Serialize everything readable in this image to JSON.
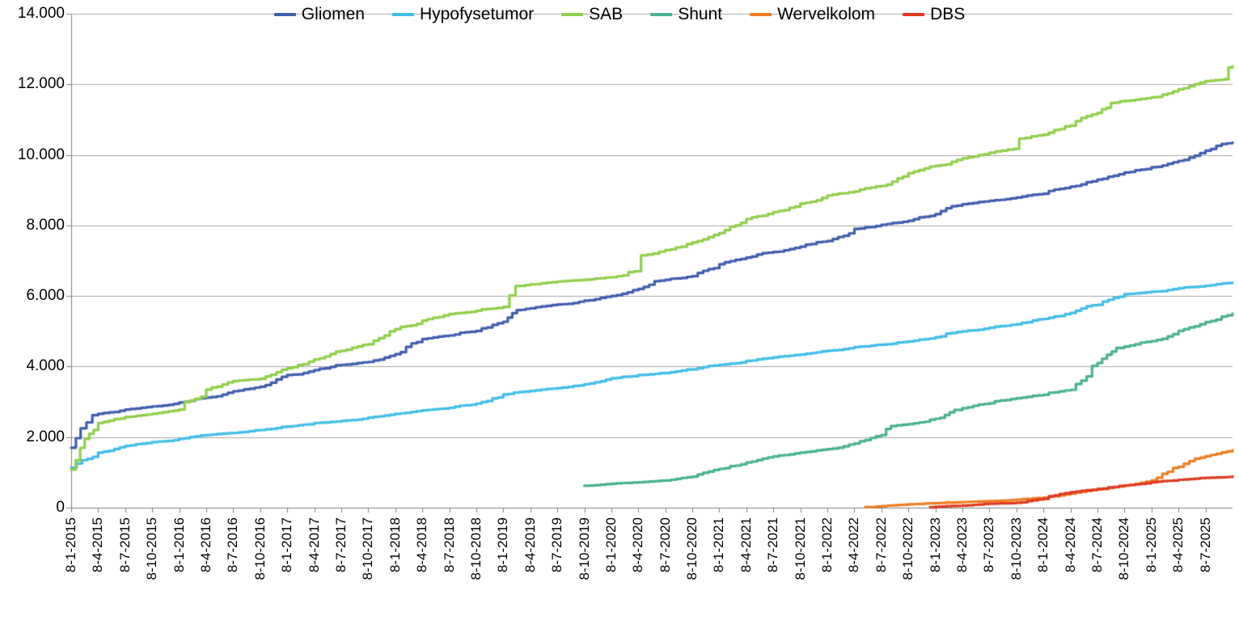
{
  "chart_data": {
    "type": "line",
    "title": "",
    "xlabel": "",
    "ylabel": "",
    "ylim": [
      0,
      14000
    ],
    "grid": "horizontal",
    "legend_position": "bottom",
    "y_ticks": [
      0,
      2000,
      4000,
      6000,
      8000,
      10000,
      12000,
      14000
    ],
    "y_tick_labels": [
      "0",
      "2.000",
      "4.000",
      "6.000",
      "8.000",
      "10.000",
      "12.000",
      "14.000"
    ],
    "x_tick_labels": [
      "8-1-2015",
      "8-4-2015",
      "8-7-2015",
      "8-10-2015",
      "8-1-2016",
      "8-4-2016",
      "8-7-2016",
      "8-10-2016",
      "8-1-2017",
      "8-4-2017",
      "8-7-2017",
      "8-10-2017",
      "8-1-2018",
      "8-4-2018",
      "8-7-2018",
      "8-10-2018",
      "8-1-2019",
      "8-4-2019",
      "8-7-2019",
      "8-10-2019",
      "8-1-2020",
      "8-4-2020",
      "8-7-2020",
      "8-10-2020",
      "8-1-2021",
      "8-4-2021",
      "8-7-2021",
      "8-10-2021",
      "8-1-2022",
      "8-4-2022",
      "8-7-2022",
      "8-10-2022",
      "8-1-2023",
      "8-4-2023",
      "8-7-2023",
      "8-10-2023",
      "8-1-2024",
      "8-4-2024",
      "8-7-2024",
      "8-10-2024",
      "8-1-2025",
      "8-4-2025",
      "8-7-2025"
    ],
    "series": [
      {
        "name": "Gliomen",
        "color": "#3F5EAE",
        "points": [
          [
            0,
            1700
          ],
          [
            0.35,
            2250
          ],
          [
            1,
            2660
          ],
          [
            2,
            2780
          ],
          [
            3,
            2870
          ],
          [
            4,
            2980
          ],
          [
            5,
            3120
          ],
          [
            6,
            3300
          ],
          [
            7,
            3430
          ],
          [
            8,
            3760
          ],
          [
            9,
            3900
          ],
          [
            10,
            4050
          ],
          [
            11,
            4130
          ],
          [
            12,
            4350
          ],
          [
            13,
            4780
          ],
          [
            14,
            4880
          ],
          [
            15,
            5010
          ],
          [
            16,
            5270
          ],
          [
            16.5,
            5600
          ],
          [
            17,
            5650
          ],
          [
            18,
            5760
          ],
          [
            19,
            5870
          ],
          [
            20,
            6000
          ],
          [
            21,
            6200
          ],
          [
            21.6,
            6420
          ],
          [
            22,
            6460
          ],
          [
            23,
            6560
          ],
          [
            24,
            6900
          ],
          [
            25,
            7090
          ],
          [
            26,
            7250
          ],
          [
            27,
            7400
          ],
          [
            28,
            7560
          ],
          [
            29,
            7900
          ],
          [
            30,
            8020
          ],
          [
            31,
            8130
          ],
          [
            32,
            8320
          ],
          [
            33,
            8600
          ],
          [
            34,
            8700
          ],
          [
            35,
            8790
          ],
          [
            36,
            8900
          ],
          [
            37,
            9100
          ],
          [
            38,
            9300
          ],
          [
            39,
            9500
          ],
          [
            40,
            9650
          ],
          [
            41,
            9830
          ],
          [
            42,
            10120
          ],
          [
            43,
            10350
          ]
        ]
      },
      {
        "name": "Hypofysetumor",
        "color": "#41BEE8",
        "points": [
          [
            0,
            1130
          ],
          [
            1,
            1560
          ],
          [
            2,
            1750
          ],
          [
            3,
            1860
          ],
          [
            4,
            1950
          ],
          [
            5,
            2060
          ],
          [
            6,
            2120
          ],
          [
            7,
            2200
          ],
          [
            8,
            2300
          ],
          [
            9,
            2400
          ],
          [
            10,
            2460
          ],
          [
            11,
            2550
          ],
          [
            12,
            2660
          ],
          [
            13,
            2760
          ],
          [
            14,
            2830
          ],
          [
            15,
            2950
          ],
          [
            16,
            3210
          ],
          [
            17,
            3310
          ],
          [
            18,
            3390
          ],
          [
            19,
            3500
          ],
          [
            20,
            3670
          ],
          [
            21,
            3760
          ],
          [
            22,
            3820
          ],
          [
            23,
            3920
          ],
          [
            24,
            4050
          ],
          [
            25,
            4160
          ],
          [
            26,
            4260
          ],
          [
            27,
            4340
          ],
          [
            28,
            4450
          ],
          [
            29,
            4550
          ],
          [
            30,
            4620
          ],
          [
            31,
            4710
          ],
          [
            32,
            4830
          ],
          [
            33,
            5000
          ],
          [
            34,
            5100
          ],
          [
            35,
            5200
          ],
          [
            36,
            5350
          ],
          [
            37,
            5520
          ],
          [
            38,
            5750
          ],
          [
            39,
            6050
          ],
          [
            40,
            6120
          ],
          [
            41,
            6220
          ],
          [
            42,
            6290
          ],
          [
            43,
            6380
          ]
        ]
      },
      {
        "name": "SAB",
        "color": "#8FD04A",
        "points": [
          [
            0,
            1080
          ],
          [
            0.5,
            1950
          ],
          [
            1,
            2400
          ],
          [
            2,
            2570
          ],
          [
            3,
            2660
          ],
          [
            4,
            2780
          ],
          [
            5,
            3350
          ],
          [
            6,
            3590
          ],
          [
            7,
            3650
          ],
          [
            8,
            3950
          ],
          [
            9,
            4200
          ],
          [
            10,
            4450
          ],
          [
            11,
            4630
          ],
          [
            12,
            5060
          ],
          [
            13,
            5300
          ],
          [
            14,
            5490
          ],
          [
            15,
            5580
          ],
          [
            16,
            5690
          ],
          [
            16.45,
            6280
          ],
          [
            17,
            6330
          ],
          [
            18,
            6410
          ],
          [
            19,
            6460
          ],
          [
            20,
            6530
          ],
          [
            20.85,
            6700
          ],
          [
            21.1,
            7150
          ],
          [
            22,
            7300
          ],
          [
            23,
            7520
          ],
          [
            24,
            7780
          ],
          [
            25,
            8180
          ],
          [
            26,
            8380
          ],
          [
            27,
            8620
          ],
          [
            28,
            8850
          ],
          [
            29,
            8960
          ],
          [
            30,
            9120
          ],
          [
            31,
            9480
          ],
          [
            32,
            9690
          ],
          [
            33,
            9900
          ],
          [
            34,
            10060
          ],
          [
            34.9,
            10170
          ],
          [
            35.1,
            10460
          ],
          [
            36,
            10570
          ],
          [
            37,
            10830
          ],
          [
            38,
            11190
          ],
          [
            38.5,
            11470
          ],
          [
            39,
            11530
          ],
          [
            40,
            11630
          ],
          [
            41,
            11860
          ],
          [
            42,
            12090
          ],
          [
            42.7,
            12140
          ],
          [
            42.85,
            12480
          ],
          [
            43,
            12510
          ]
        ]
      },
      {
        "name": "Shunt",
        "color": "#48B38E",
        "points": [
          [
            19,
            620
          ],
          [
            20,
            680
          ],
          [
            21,
            720
          ],
          [
            22,
            770
          ],
          [
            23,
            880
          ],
          [
            24,
            1100
          ],
          [
            25,
            1280
          ],
          [
            26,
            1450
          ],
          [
            27,
            1560
          ],
          [
            28,
            1660
          ],
          [
            29,
            1820
          ],
          [
            30,
            2060
          ],
          [
            30.35,
            2310
          ],
          [
            31,
            2370
          ],
          [
            32,
            2520
          ],
          [
            32.7,
            2770
          ],
          [
            33,
            2820
          ],
          [
            34,
            2960
          ],
          [
            35,
            3100
          ],
          [
            36,
            3200
          ],
          [
            37,
            3340
          ],
          [
            37.6,
            3720
          ],
          [
            38,
            4100
          ],
          [
            38.7,
            4530
          ],
          [
            39,
            4570
          ],
          [
            40,
            4720
          ],
          [
            41,
            5010
          ],
          [
            42,
            5260
          ],
          [
            43,
            5500
          ]
        ]
      },
      {
        "name": "Wervelkolom",
        "color": "#EF7D22",
        "points": [
          [
            29.4,
            15
          ],
          [
            30,
            45
          ],
          [
            31,
            95
          ],
          [
            32,
            130
          ],
          [
            33,
            160
          ],
          [
            34,
            185
          ],
          [
            35,
            225
          ],
          [
            36,
            285
          ],
          [
            37,
            400
          ],
          [
            38,
            520
          ],
          [
            39,
            625
          ],
          [
            40,
            770
          ],
          [
            40.6,
            1020
          ],
          [
            41,
            1160
          ],
          [
            42,
            1460
          ],
          [
            43,
            1630
          ]
        ]
      },
      {
        "name": "DBS",
        "color": "#DE3A21",
        "points": [
          [
            31.8,
            10
          ],
          [
            32,
            25
          ],
          [
            33,
            60
          ],
          [
            34,
            110
          ],
          [
            35,
            140
          ],
          [
            36,
            250
          ],
          [
            36.6,
            390
          ],
          [
            37,
            440
          ],
          [
            38,
            530
          ],
          [
            39,
            630
          ],
          [
            40,
            720
          ],
          [
            41,
            790
          ],
          [
            42,
            845
          ],
          [
            43,
            885
          ]
        ]
      }
    ]
  },
  "colors": {
    "background": "#FFFFFF",
    "gridline": "#A6A6A6",
    "axis": "#808080",
    "tick": "#808080",
    "label_text": "#000000"
  }
}
